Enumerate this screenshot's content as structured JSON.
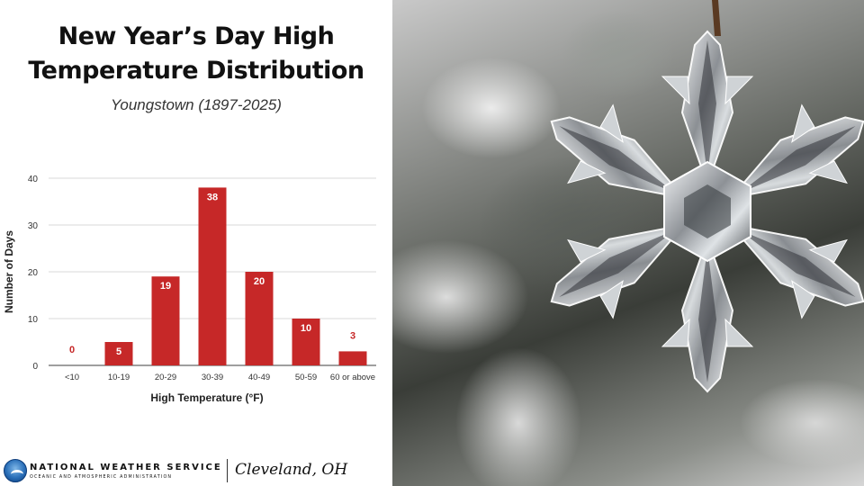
{
  "header": {
    "title_line1": "New Year’s Day High",
    "title_line2": "Temperature Distribution",
    "subtitle": "Youngstown (1897-2025)"
  },
  "chart_data": {
    "type": "bar",
    "categories": [
      "<10",
      "10-19",
      "20-29",
      "30-39",
      "40-49",
      "50-59",
      "60 or above"
    ],
    "values": [
      0,
      5,
      19,
      38,
      20,
      10,
      3
    ],
    "xlabel": "High Temperature (°F)",
    "ylabel": "Number of Days",
    "ylim": [
      0,
      40
    ],
    "yticks": [
      0,
      10,
      20,
      30,
      40
    ],
    "bar_color": "#c62828",
    "data_labels": "on bars",
    "grid": true
  },
  "footer": {
    "org_name": "NATIONAL WEATHER SERVICE",
    "org_subtitle": "OCEANIC AND ATMOSPHERIC ADMINISTRATION",
    "office": "Cleveland, OH"
  },
  "photo": {
    "subject": "snowflake-ornament-icon"
  }
}
